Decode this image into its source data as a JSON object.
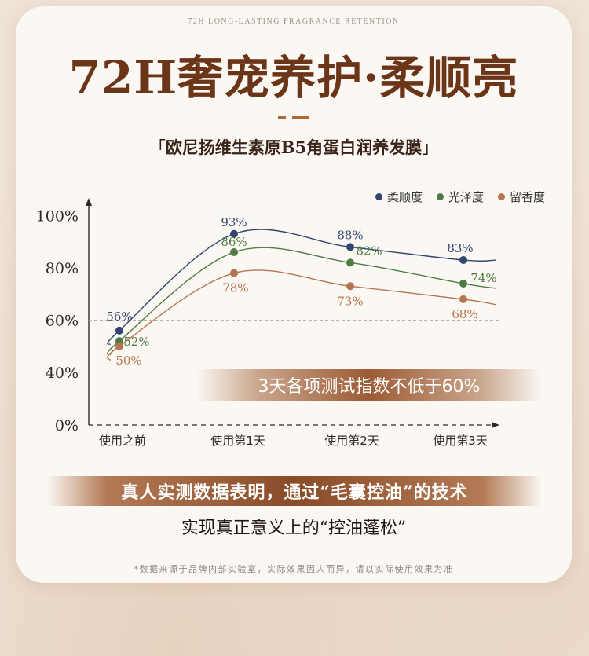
{
  "tagline": "72H LONG-LASTING FRAGRANCE RETENTION",
  "headline": "72H奢宠养护·柔顺亮",
  "subtitle": {
    "open_bracket": "「",
    "text": "欧尼扬维生素原B5角蛋白润养发膜",
    "close_bracket": "」"
  },
  "chart_data": {
    "type": "line",
    "categories": [
      "使用之前",
      "使用第1天",
      "使用第2天",
      "使用第3天"
    ],
    "y_ticks": [
      "0%",
      "40%",
      "60%",
      "80%",
      "100%"
    ],
    "y_tick_values": [
      0,
      40,
      60,
      80,
      100
    ],
    "reference_line": 60,
    "series": [
      {
        "name": "柔顺度",
        "color": "#33466f",
        "values": [
          56,
          93,
          88,
          83
        ],
        "labels": [
          "56%",
          "93%",
          "88%",
          "83%"
        ]
      },
      {
        "name": "光泽度",
        "color": "#4f7a45",
        "values": [
          52,
          86,
          82,
          74
        ],
        "labels": [
          "52%",
          "86%",
          "82%",
          "74%"
        ]
      },
      {
        "name": "留香度",
        "color": "#b4754f",
        "values": [
          50,
          78,
          73,
          68
        ],
        "labels": [
          "50%",
          "78%",
          "73%",
          "68%"
        ]
      }
    ],
    "grid": false,
    "legend": "top-right",
    "annotation": "3天各项测试指数不低于60%"
  },
  "conclusion": {
    "line1": "真人实测数据表明，通过“毛囊控油”的技术",
    "line2": "实现真正意义上的“控油蓬松”"
  },
  "footnote": "*数据来源于品牌内部实验室，实际效果因人而异，请以实际使用效果为准"
}
